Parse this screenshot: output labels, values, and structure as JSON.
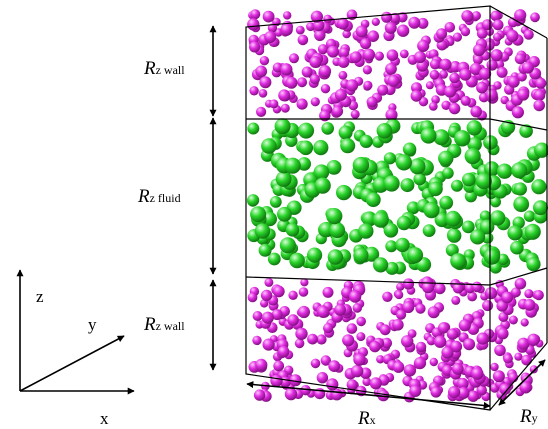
{
  "labels": {
    "rz_wall_top": {
      "main": "R",
      "sub": "z wall"
    },
    "rz_fluid": {
      "main": "R",
      "sub": "z fluid"
    },
    "rz_wall_bottom": {
      "main": "R",
      "sub": "z wall"
    },
    "rx": {
      "main": "R",
      "sub": "x"
    },
    "ry": {
      "main": "R",
      "sub": "y"
    }
  },
  "axes": {
    "z": "z",
    "y": "y",
    "x": "x"
  },
  "colors": {
    "wall_particle": "#d81fd8",
    "fluid_particle": "#22cc22",
    "box_line": "#000000"
  },
  "particles": {
    "wall_top_count": 300,
    "fluid_count": 260,
    "wall_bottom_count": 330
  }
}
